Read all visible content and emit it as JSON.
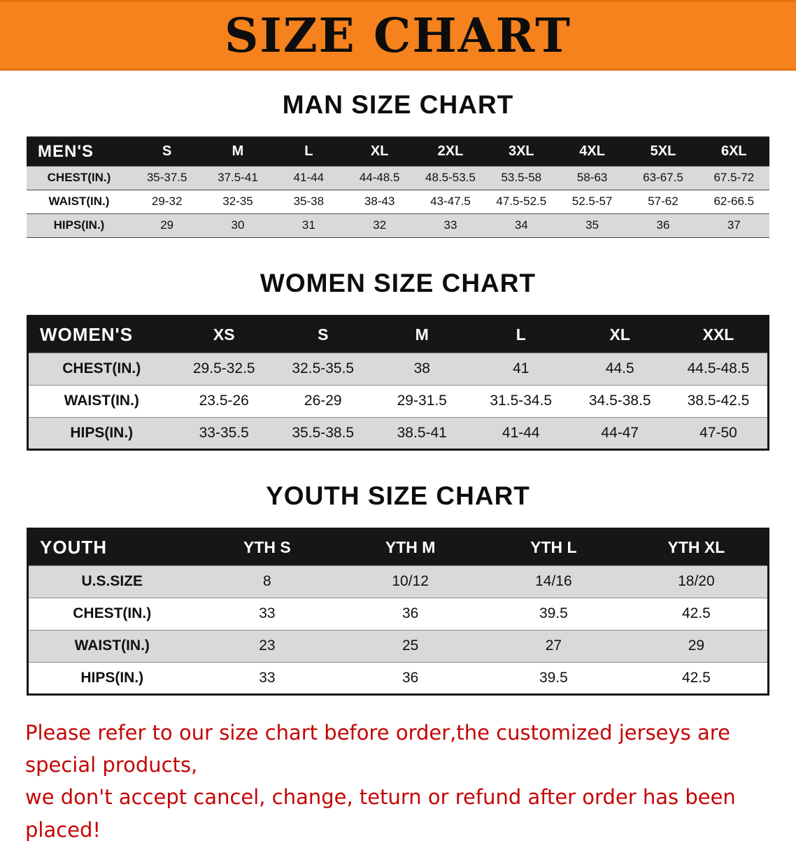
{
  "colors": {
    "banner_orange": "#f6821e",
    "header_black": "#161616",
    "stripe_gray": "#d9d9d9",
    "disclaimer_red": "#c40404"
  },
  "banner": {
    "title": "SIZE CHART"
  },
  "sections": [
    {
      "key": "mens",
      "heading": "MAN SIZE CHART",
      "table": {
        "corner": "MEN'S",
        "columns": [
          "S",
          "M",
          "L",
          "XL",
          "2XL",
          "3XL",
          "4XL",
          "5XL",
          "6XL"
        ],
        "rows": [
          {
            "label": "CHEST(IN.)",
            "values": [
              "35-37.5",
              "37.5-41",
              "41-44",
              "44-48.5",
              "48.5-53.5",
              "53.5-58",
              "58-63",
              "63-67.5",
              "67.5-72"
            ]
          },
          {
            "label": "WAIST(IN.)",
            "values": [
              "29-32",
              "32-35",
              "35-38",
              "38-43",
              "43-47.5",
              "47.5-52.5",
              "52.5-57",
              "57-62",
              "62-66.5"
            ]
          },
          {
            "label": "HIPS(IN.)",
            "values": [
              "29",
              "30",
              "31",
              "32",
              "33",
              "34",
              "35",
              "36",
              "37"
            ]
          }
        ]
      }
    },
    {
      "key": "womens",
      "heading": "WOMEN SIZE CHART",
      "table": {
        "corner": "WOMEN'S",
        "columns": [
          "XS",
          "S",
          "M",
          "L",
          "XL",
          "XXL"
        ],
        "rows": [
          {
            "label": "CHEST(IN.)",
            "values": [
              "29.5-32.5",
              "32.5-35.5",
              "38",
              "41",
              "44.5",
              "44.5-48.5"
            ]
          },
          {
            "label": "WAIST(IN.)",
            "values": [
              "23.5-26",
              "26-29",
              "29-31.5",
              "31.5-34.5",
              "34.5-38.5",
              "38.5-42.5"
            ]
          },
          {
            "label": "HIPS(IN.)",
            "values": [
              "33-35.5",
              "35.5-38.5",
              "38.5-41",
              "41-44",
              "44-47",
              "47-50"
            ]
          }
        ]
      }
    },
    {
      "key": "youth",
      "heading": "YOUTH SIZE CHART",
      "table": {
        "corner": "YOUTH",
        "columns": [
          "YTH S",
          "YTH M",
          "YTH L",
          "YTH XL"
        ],
        "rows": [
          {
            "label": "U.S.SIZE",
            "values": [
              "8",
              "10/12",
              "14/16",
              "18/20"
            ]
          },
          {
            "label": "CHEST(IN.)",
            "values": [
              "33",
              "36",
              "39.5",
              "42.5"
            ]
          },
          {
            "label": "WAIST(IN.)",
            "values": [
              "23",
              "25",
              "27",
              "29"
            ]
          },
          {
            "label": "HIPS(IN.)",
            "values": [
              "33",
              "36",
              "39.5",
              "42.5"
            ]
          }
        ]
      }
    }
  ],
  "disclaimer": {
    "line1": "Please refer to our size chart before order,the customized jerseys are special products,",
    "line2": "we don't accept cancel, change, teturn or refund after order has been placed!"
  }
}
